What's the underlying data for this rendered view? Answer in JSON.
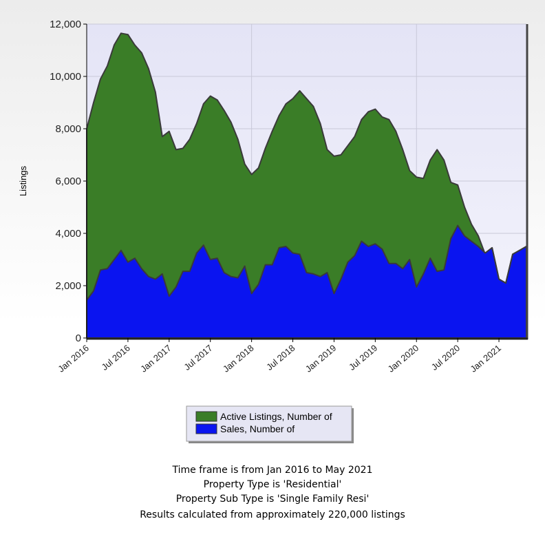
{
  "chart_data": {
    "type": "area",
    "ylabel": "Listings",
    "categories": [
      "Jan 2016",
      null,
      null,
      null,
      null,
      null,
      "Jul 2016",
      null,
      null,
      null,
      null,
      null,
      "Jan 2017",
      null,
      null,
      null,
      null,
      null,
      "Jul 2017",
      null,
      null,
      null,
      null,
      null,
      "Jan 2018",
      null,
      null,
      null,
      null,
      null,
      "Jul 2018",
      null,
      null,
      null,
      null,
      null,
      "Jan 2019",
      null,
      null,
      null,
      null,
      null,
      "Jul 2019",
      null,
      null,
      null,
      null,
      null,
      "Jan 2020",
      null,
      null,
      null,
      null,
      null,
      "Jul 2020",
      null,
      null,
      null,
      null,
      null,
      "Jan 2021",
      null,
      null,
      null,
      null
    ],
    "series": [
      {
        "name": "Active Listings, Number of",
        "color": "#3a7d27",
        "values": [
          8000,
          9000,
          9900,
          10400,
          11200,
          11650,
          11600,
          11200,
          10900,
          10300,
          9400,
          7700,
          7900,
          7200,
          7250,
          7600,
          8200,
          8950,
          9250,
          9100,
          8700,
          8250,
          7600,
          6650,
          6250,
          6500,
          7250,
          7900,
          8500,
          8950,
          9150,
          9450,
          9150,
          8850,
          8200,
          7200,
          6950,
          7000,
          7350,
          7700,
          8350,
          8650,
          8750,
          8450,
          8350,
          7900,
          7200,
          6400,
          6150,
          6100,
          6800,
          7200,
          6800,
          5950,
          5850,
          5000,
          4350,
          3900,
          3200,
          3450,
          2250,
          2100,
          3200,
          3350,
          3500
        ]
      },
      {
        "name": "Sales, Number of",
        "color": "#0a14f0",
        "values": [
          1450,
          1800,
          2600,
          2650,
          3000,
          3350,
          2900,
          3050,
          2650,
          2350,
          2250,
          2450,
          1600,
          1950,
          2550,
          2550,
          3250,
          3550,
          3000,
          3050,
          2500,
          2350,
          2300,
          2750,
          1700,
          2050,
          2800,
          2800,
          3450,
          3500,
          3250,
          3200,
          2500,
          2450,
          2350,
          2500,
          1700,
          2250,
          2900,
          3150,
          3700,
          3500,
          3600,
          3400,
          2850,
          2850,
          2650,
          3000,
          1950,
          2450,
          3050,
          2550,
          2600,
          3800,
          4300,
          3900,
          3700,
          3500,
          3250,
          3450,
          2250,
          2100,
          3200,
          3350,
          3500
        ]
      }
    ],
    "ylim": [
      0,
      12000
    ],
    "yticks": [
      0,
      {
        "value": 2000,
        "label": "2,000"
      },
      {
        "value": 4000,
        "label": "4,000"
      },
      {
        "value": 6000,
        "label": "6,000"
      },
      {
        "value": 8000,
        "label": "8,000"
      },
      {
        "value": 10000,
        "label": "10,000"
      },
      {
        "value": 12000,
        "label": "12,000"
      }
    ],
    "grid": true
  },
  "notes": [
    "Time frame is from Jan 2016 to May 2021",
    "Property Type is 'Residential'",
    "Property Sub Type is 'Single Family Resi'",
    "Results calculated from approximately 220,000 listings"
  ]
}
